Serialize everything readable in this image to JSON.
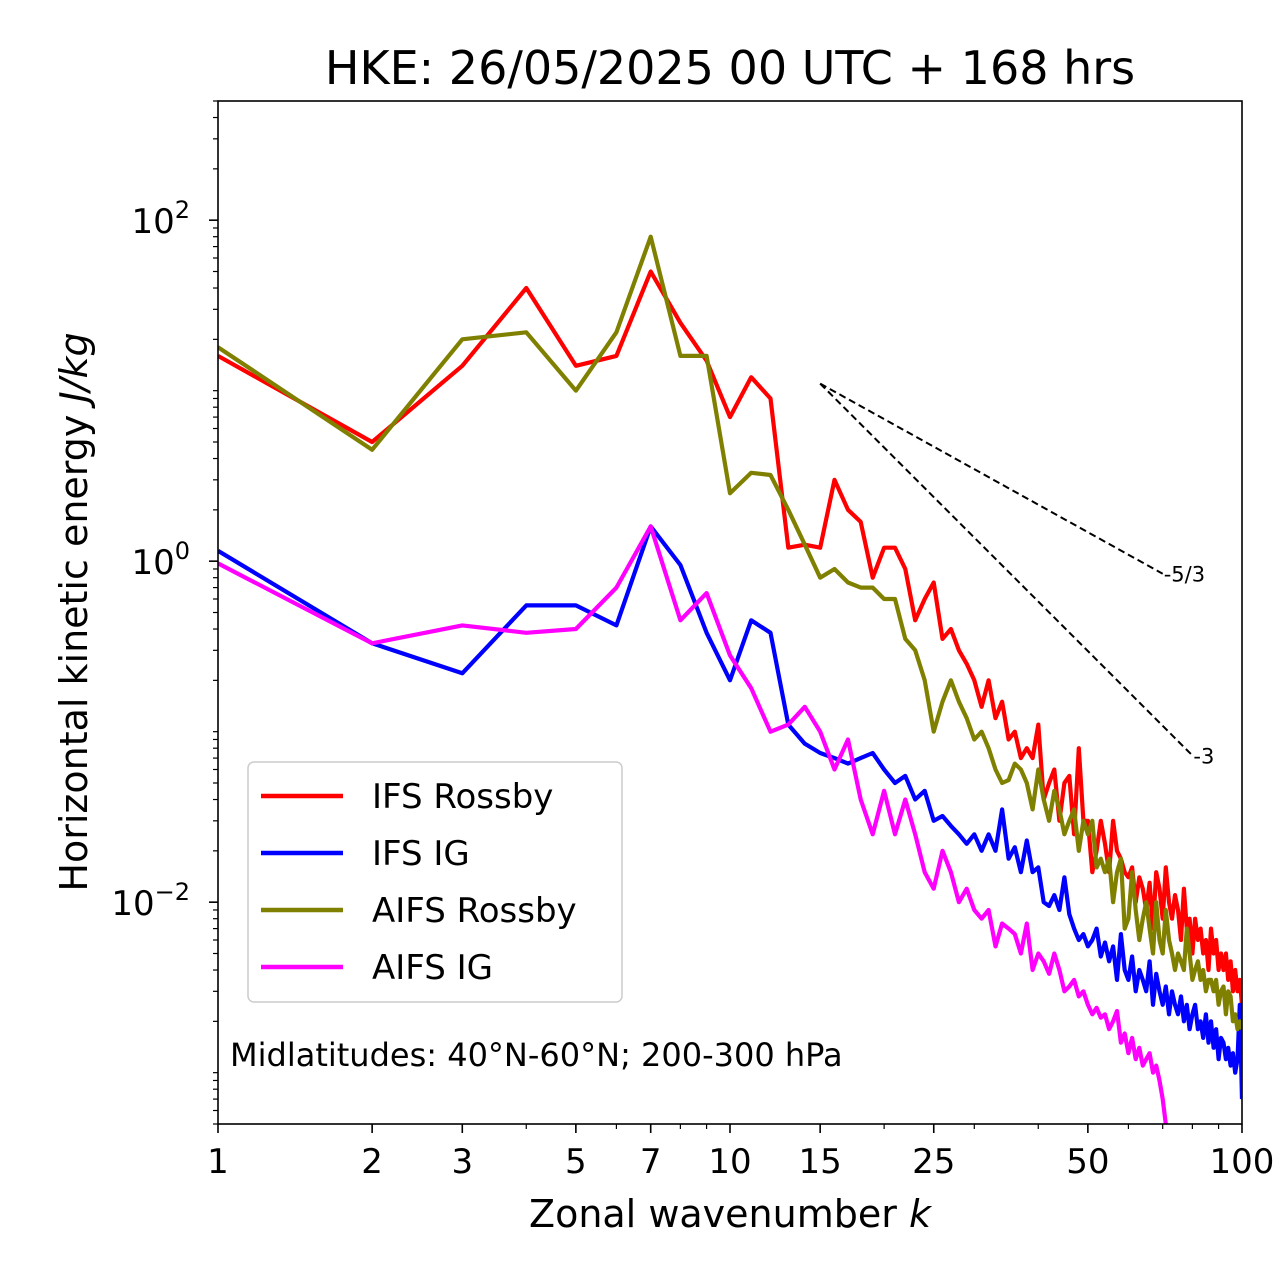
{
  "chart_data": {
    "type": "line",
    "title": "HKE: 26/05/2025 00 UTC + 168 hrs",
    "xlabel": "Zonal wavenumber",
    "xlabel_var": "k",
    "ylabel": "Horizontal kinetic energy",
    "ylabel_unit": "J/kg",
    "xscale": "log",
    "yscale": "log",
    "xlim": [
      1,
      100
    ],
    "ylim": [
      0.0005,
      500
    ],
    "x_ticks": [
      1,
      2,
      3,
      5,
      7,
      10,
      15,
      25,
      50,
      100
    ],
    "x_tick_labels": [
      "1",
      "2",
      "3",
      "5",
      "7",
      "10",
      "15",
      "25",
      "50",
      "100"
    ],
    "y_ticks": [
      {
        "value": 100,
        "base": "10",
        "exp": "2"
      },
      {
        "value": 1,
        "base": "10",
        "exp": "0"
      },
      {
        "value": 0.01,
        "base": "10",
        "exp": "−2"
      }
    ],
    "grid": false,
    "legend_position": "lower-left",
    "annotation": "Midlatitudes: 40°N-60°N; 200-300 hPa",
    "reference_slopes": [
      {
        "label": "-5/3",
        "slope": -1.6667,
        "x_start": 15,
        "y_start": 11,
        "x_end": 70
      },
      {
        "label": "-3",
        "slope": -3,
        "x_start": 15,
        "y_start": 11,
        "x_end": 80
      }
    ],
    "series": [
      {
        "name": "IFS Rossby",
        "color": "#ff0000",
        "values": [
          16,
          5,
          14,
          40,
          14,
          16,
          50,
          25,
          15,
          7,
          12,
          9,
          1.2,
          1.25,
          1.2,
          3,
          2,
          1.7,
          0.8,
          1.2,
          1.2,
          0.9,
          0.45,
          0.6,
          0.75,
          0.35,
          0.4,
          0.3,
          0.25,
          0.2,
          0.14,
          0.2,
          0.12,
          0.15,
          0.09,
          0.1,
          0.07,
          0.08,
          0.07,
          0.11,
          0.04,
          0.05,
          0.06,
          0.03,
          0.05,
          0.055,
          0.025,
          0.08,
          0.03,
          0.03,
          0.015,
          0.02,
          0.03,
          0.022,
          0.015,
          0.03,
          0.02,
          0.018,
          0.015,
          0.014,
          0.016,
          0.01,
          0.014,
          0.012,
          0.009,
          0.013,
          0.007,
          0.015,
          0.012,
          0.008,
          0.016,
          0.01,
          0.008,
          0.011,
          0.009,
          0.006,
          0.012,
          0.007,
          0.008,
          0.005,
          0.008,
          0.006,
          0.007,
          0.005,
          0.006,
          0.004,
          0.007,
          0.005,
          0.006,
          0.004,
          0.005,
          0.004,
          0.005,
          0.0035,
          0.0045,
          0.003,
          0.004,
          0.003,
          0.0035,
          0.0025
        ]
      },
      {
        "name": "IFS IG",
        "color": "#0000ff",
        "values": [
          1.15,
          0.33,
          0.22,
          0.55,
          0.55,
          0.42,
          1.6,
          0.95,
          0.38,
          0.2,
          0.45,
          0.38,
          0.11,
          0.085,
          0.075,
          0.07,
          0.065,
          0.07,
          0.075,
          0.06,
          0.05,
          0.055,
          0.04,
          0.045,
          0.03,
          0.032,
          0.028,
          0.025,
          0.022,
          0.025,
          0.02,
          0.025,
          0.02,
          0.035,
          0.018,
          0.021,
          0.015,
          0.023,
          0.015,
          0.016,
          0.01,
          0.0095,
          0.011,
          0.009,
          0.014,
          0.0085,
          0.007,
          0.006,
          0.0065,
          0.0055,
          0.006,
          0.007,
          0.0048,
          0.0058,
          0.0045,
          0.0055,
          0.0035,
          0.0065,
          0.004,
          0.0035,
          0.0048,
          0.003,
          0.004,
          0.0035,
          0.003,
          0.0045,
          0.0025,
          0.0038,
          0.003,
          0.0025,
          0.0032,
          0.0022,
          0.003,
          0.0025,
          0.0022,
          0.0028,
          0.002,
          0.0025,
          0.0018,
          0.0022,
          0.0025,
          0.0018,
          0.002,
          0.0016,
          0.0022,
          0.0015,
          0.002,
          0.0014,
          0.0018,
          0.0012,
          0.0016,
          0.0015,
          0.0012,
          0.0014,
          0.0011,
          0.0013,
          0.001,
          0.0012,
          0.0025,
          0.0007
        ]
      },
      {
        "name": "AIFS Rossby",
        "color": "#808000",
        "values": [
          18,
          4.5,
          20,
          22,
          10,
          22,
          80,
          16,
          16,
          2.5,
          3.3,
          3.2,
          2,
          1.25,
          0.8,
          0.9,
          0.75,
          0.7,
          0.7,
          0.6,
          0.6,
          0.35,
          0.3,
          0.2,
          0.1,
          0.15,
          0.2,
          0.15,
          0.12,
          0.09,
          0.1,
          0.08,
          0.06,
          0.05,
          0.052,
          0.065,
          0.06,
          0.05,
          0.035,
          0.06,
          0.04,
          0.03,
          0.045,
          0.035,
          0.025,
          0.03,
          0.035,
          0.02,
          0.03,
          0.025,
          0.03,
          0.016,
          0.018,
          0.015,
          0.018,
          0.01,
          0.015,
          0.018,
          0.007,
          0.008,
          0.015,
          0.009,
          0.006,
          0.008,
          0.01,
          0.007,
          0.005,
          0.01,
          0.006,
          0.005,
          0.009,
          0.006,
          0.005,
          0.004,
          0.005,
          0.0045,
          0.004,
          0.007,
          0.005,
          0.0035,
          0.004,
          0.0045,
          0.0035,
          0.004,
          0.003,
          0.0035,
          0.0035,
          0.003,
          0.0035,
          0.0025,
          0.003,
          0.0032,
          0.0022,
          0.003,
          0.0028,
          0.002,
          0.0022,
          0.0018,
          0.002,
          0.0018
        ]
      },
      {
        "name": "AIFS IG",
        "color": "#ff00ff",
        "values": [
          0.97,
          0.33,
          0.42,
          0.38,
          0.4,
          0.7,
          1.6,
          0.45,
          0.65,
          0.28,
          0.18,
          0.1,
          0.11,
          0.14,
          0.1,
          0.06,
          0.09,
          0.04,
          0.025,
          0.045,
          0.025,
          0.04,
          0.025,
          0.015,
          0.012,
          0.02,
          0.015,
          0.01,
          0.012,
          0.009,
          0.008,
          0.009,
          0.0055,
          0.0075,
          0.007,
          0.0065,
          0.005,
          0.0075,
          0.004,
          0.005,
          0.0045,
          0.0038,
          0.005,
          0.004,
          0.003,
          0.0032,
          0.0035,
          0.0028,
          0.003,
          0.0025,
          0.0022,
          0.0024,
          0.0021,
          0.0022,
          0.0018,
          0.002,
          0.0023,
          0.0015,
          0.0017,
          0.0013,
          0.0016,
          0.0012,
          0.0014,
          0.0011,
          0.0012,
          0.0013,
          0.001,
          0.0011,
          0.0009,
          0.0007,
          0.0005,
          0.00045
        ]
      }
    ]
  }
}
